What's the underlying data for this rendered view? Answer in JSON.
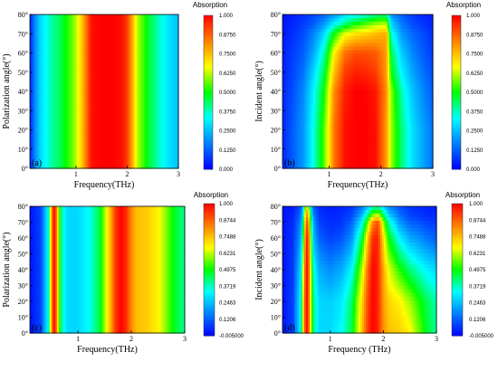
{
  "colors": {
    "colormap": [
      "#0000ff",
      "#0080ff",
      "#00ffff",
      "#00ff00",
      "#ffff00",
      "#ff8000",
      "#ff0000"
    ],
    "axis": "#000000"
  },
  "chart_data": [
    {
      "type": "heatmap",
      "panel_label": "(a)",
      "xlabel": "Frequency(THz)",
      "ylabel": "Polarization angle(°)",
      "xlim": [
        0.1,
        3.0
      ],
      "ylim": [
        0,
        80
      ],
      "x_ticks": [
        {
          "v": 1,
          "t": "1"
        },
        {
          "v": 2,
          "t": "2"
        },
        {
          "v": 3,
          "t": "3"
        }
      ],
      "y_ticks": [
        {
          "v": 0,
          "t": "0°"
        },
        {
          "v": 10,
          "t": "10°"
        },
        {
          "v": 20,
          "t": "20°"
        },
        {
          "v": 30,
          "t": "30°"
        },
        {
          "v": 40,
          "t": "40°"
        },
        {
          "v": 50,
          "t": "50°"
        },
        {
          "v": 60,
          "t": "60°"
        },
        {
          "v": 70,
          "t": "70°"
        },
        {
          "v": 80,
          "t": "80°"
        }
      ],
      "colorbar": {
        "title": "Absorption",
        "range": [
          0,
          1
        ],
        "ticks": [
          "0.000",
          "0.1250",
          "0.2500",
          "0.3750",
          "0.5000",
          "0.6250",
          "0.7500",
          "0.8750",
          "1.000"
        ]
      },
      "x": [
        0.1,
        0.2,
        0.3,
        0.5,
        0.7,
        0.9,
        1.0,
        1.1,
        1.2,
        1.3,
        1.5,
        1.7,
        1.9,
        2.0,
        2.1,
        2.2,
        2.4,
        2.6,
        2.8,
        3.0
      ],
      "y": [
        0,
        80
      ],
      "z": [
        [
          0.05,
          0.18,
          0.28,
          0.38,
          0.45,
          0.55,
          0.62,
          0.72,
          0.85,
          0.98,
          1.0,
          1.0,
          0.98,
          0.92,
          0.78,
          0.62,
          0.48,
          0.38,
          0.3,
          0.25
        ],
        [
          0.05,
          0.18,
          0.28,
          0.38,
          0.45,
          0.55,
          0.62,
          0.72,
          0.85,
          0.98,
          1.0,
          1.0,
          0.98,
          0.92,
          0.78,
          0.62,
          0.48,
          0.38,
          0.3,
          0.25
        ]
      ]
    },
    {
      "type": "heatmap",
      "panel_label": "(b)",
      "xlabel": "Frequency(THz)",
      "ylabel": "Incident angle(°)",
      "xlim": [
        0.1,
        3.0
      ],
      "ylim": [
        0,
        80
      ],
      "x_ticks": [
        {
          "v": 1,
          "t": "1"
        },
        {
          "v": 2,
          "t": "2"
        },
        {
          "v": 3,
          "t": "3"
        }
      ],
      "y_ticks": [
        {
          "v": 0,
          "t": "0°"
        },
        {
          "v": 10,
          "t": "10°"
        },
        {
          "v": 20,
          "t": "20°"
        },
        {
          "v": 30,
          "t": "30°"
        },
        {
          "v": 40,
          "t": "40°"
        },
        {
          "v": 50,
          "t": "50°"
        },
        {
          "v": 60,
          "t": "60°"
        },
        {
          "v": 70,
          "t": "70°"
        },
        {
          "v": 80,
          "t": "80°"
        }
      ],
      "colorbar": {
        "title": "Absorption",
        "range": [
          0,
          1
        ],
        "ticks": [
          "0.000",
          "0.1250",
          "0.2500",
          "0.3750",
          "0.5000",
          "0.6250",
          "0.7500",
          "0.8750",
          "1.000"
        ]
      },
      "x": [
        0.1,
        0.3,
        0.5,
        0.7,
        0.9,
        1.1,
        1.3,
        1.5,
        1.7,
        1.9,
        2.1,
        2.2,
        2.4,
        2.6,
        2.8,
        3.0
      ],
      "y": [
        0,
        20,
        40,
        50,
        60,
        70,
        75,
        80
      ],
      "z": [
        [
          0.05,
          0.12,
          0.2,
          0.35,
          0.55,
          0.85,
          0.98,
          1.0,
          1.0,
          0.98,
          0.8,
          0.6,
          0.42,
          0.3,
          0.22,
          0.15
        ],
        [
          0.05,
          0.12,
          0.2,
          0.35,
          0.55,
          0.85,
          0.98,
          1.0,
          1.0,
          0.98,
          0.8,
          0.6,
          0.42,
          0.3,
          0.22,
          0.15
        ],
        [
          0.05,
          0.1,
          0.18,
          0.32,
          0.5,
          0.82,
          0.96,
          1.0,
          1.0,
          0.97,
          0.82,
          0.58,
          0.38,
          0.26,
          0.18,
          0.12
        ],
        [
          0.04,
          0.09,
          0.15,
          0.28,
          0.45,
          0.75,
          0.92,
          0.96,
          0.95,
          0.92,
          0.8,
          0.5,
          0.32,
          0.22,
          0.15,
          0.1
        ],
        [
          0.04,
          0.08,
          0.12,
          0.22,
          0.38,
          0.68,
          0.85,
          0.9,
          0.9,
          0.88,
          0.8,
          0.45,
          0.27,
          0.18,
          0.12,
          0.08
        ],
        [
          0.03,
          0.06,
          0.1,
          0.17,
          0.28,
          0.5,
          0.65,
          0.7,
          0.72,
          0.75,
          0.78,
          0.35,
          0.2,
          0.14,
          0.1,
          0.06
        ],
        [
          0.03,
          0.05,
          0.08,
          0.12,
          0.2,
          0.32,
          0.42,
          0.5,
          0.55,
          0.6,
          0.62,
          0.28,
          0.16,
          0.1,
          0.07,
          0.05
        ],
        [
          0.02,
          0.04,
          0.06,
          0.09,
          0.13,
          0.2,
          0.28,
          0.32,
          0.35,
          0.4,
          0.42,
          0.2,
          0.12,
          0.08,
          0.05,
          0.04
        ]
      ]
    },
    {
      "type": "heatmap",
      "panel_label": "(c)",
      "xlabel": "Frequency(THz)",
      "ylabel": "Polarization angle(°)",
      "xlim": [
        0.1,
        3.0
      ],
      "ylim": [
        0,
        80
      ],
      "x_ticks": [
        {
          "v": 1,
          "t": "1"
        },
        {
          "v": 2,
          "t": "2"
        },
        {
          "v": 3,
          "t": "3"
        }
      ],
      "y_ticks": [
        {
          "v": 0,
          "t": "0°"
        },
        {
          "v": 10,
          "t": "10°"
        },
        {
          "v": 20,
          "t": "20°"
        },
        {
          "v": 30,
          "t": "30°"
        },
        {
          "v": 40,
          "t": "40°"
        },
        {
          "v": 50,
          "t": "50°"
        },
        {
          "v": 60,
          "t": "60°"
        },
        {
          "v": 70,
          "t": "70°"
        },
        {
          "v": 80,
          "t": "80°"
        }
      ],
      "colorbar": {
        "title": "Absorption",
        "range": [
          -0.005,
          1
        ],
        "ticks": [
          "-0.005000",
          "0.1206",
          "0.2463",
          "0.3719",
          "0.4975",
          "0.6231",
          "0.7488",
          "0.8744",
          "1.000"
        ]
      },
      "x": [
        0.1,
        0.3,
        0.45,
        0.5,
        0.55,
        0.6,
        0.65,
        0.7,
        0.8,
        1.0,
        1.2,
        1.4,
        1.6,
        1.7,
        1.8,
        1.9,
        2.0,
        2.1,
        2.3,
        2.5,
        2.7,
        2.8,
        3.0
      ],
      "y": [
        0,
        80
      ],
      "z": [
        [
          0.02,
          0.08,
          0.35,
          0.78,
          1.0,
          0.85,
          0.55,
          0.38,
          0.28,
          0.28,
          0.33,
          0.45,
          0.75,
          0.92,
          1.0,
          0.95,
          0.82,
          0.75,
          0.73,
          0.68,
          0.55,
          0.48,
          0.4
        ],
        [
          0.02,
          0.08,
          0.35,
          0.78,
          1.0,
          0.85,
          0.55,
          0.38,
          0.28,
          0.28,
          0.33,
          0.45,
          0.75,
          0.92,
          1.0,
          0.95,
          0.82,
          0.75,
          0.73,
          0.68,
          0.55,
          0.48,
          0.4
        ]
      ]
    },
    {
      "type": "heatmap",
      "panel_label": "(d)",
      "xlabel": "Frequency (THz)",
      "ylabel": "Incident angle(°)",
      "xlim": [
        0.1,
        3.0
      ],
      "ylim": [
        0,
        80
      ],
      "x_ticks": [
        {
          "v": 1,
          "t": "1"
        },
        {
          "v": 2,
          "t": "2"
        },
        {
          "v": 3,
          "t": "3"
        }
      ],
      "y_ticks": [
        {
          "v": 0,
          "t": "0°"
        },
        {
          "v": 10,
          "t": "10°"
        },
        {
          "v": 20,
          "t": "20°"
        },
        {
          "v": 30,
          "t": "30°"
        },
        {
          "v": 40,
          "t": "40°"
        },
        {
          "v": 50,
          "t": "50°"
        },
        {
          "v": 60,
          "t": "60°"
        },
        {
          "v": 70,
          "t": "70°"
        },
        {
          "v": 80,
          "t": "80°"
        }
      ],
      "colorbar": {
        "title": "Absorption",
        "range": [
          -0.005,
          1
        ],
        "ticks": [
          "-0.005000",
          "0.1206",
          "0.2463",
          "0.3719",
          "0.4975",
          "0.6231",
          "0.7488",
          "0.8744",
          "1.000"
        ]
      },
      "x": [
        0.1,
        0.3,
        0.45,
        0.5,
        0.55,
        0.6,
        0.65,
        0.7,
        0.8,
        1.0,
        1.2,
        1.4,
        1.6,
        1.7,
        1.8,
        1.9,
        2.0,
        2.1,
        2.3,
        2.5,
        2.7,
        2.8,
        3.0
      ],
      "y": [
        0,
        20,
        40,
        60,
        70,
        75,
        80
      ],
      "z": [
        [
          0.02,
          0.08,
          0.35,
          0.78,
          1.0,
          0.85,
          0.55,
          0.38,
          0.28,
          0.28,
          0.33,
          0.45,
          0.75,
          0.92,
          1.0,
          0.95,
          0.82,
          0.75,
          0.73,
          0.68,
          0.55,
          0.48,
          0.4
        ],
        [
          0.02,
          0.08,
          0.35,
          0.78,
          1.0,
          0.85,
          0.55,
          0.38,
          0.28,
          0.27,
          0.3,
          0.42,
          0.72,
          0.9,
          1.0,
          0.95,
          0.8,
          0.72,
          0.68,
          0.6,
          0.5,
          0.45,
          0.38
        ],
        [
          0.02,
          0.07,
          0.3,
          0.72,
          1.0,
          0.85,
          0.5,
          0.33,
          0.22,
          0.18,
          0.22,
          0.32,
          0.62,
          0.85,
          1.0,
          0.95,
          0.78,
          0.65,
          0.52,
          0.42,
          0.35,
          0.32,
          0.28
        ],
        [
          0.02,
          0.06,
          0.22,
          0.6,
          0.98,
          0.82,
          0.42,
          0.22,
          0.12,
          0.08,
          0.1,
          0.18,
          0.45,
          0.72,
          0.95,
          0.95,
          0.7,
          0.5,
          0.32,
          0.22,
          0.18,
          0.15,
          0.12
        ],
        [
          0.02,
          0.05,
          0.18,
          0.5,
          0.92,
          0.75,
          0.35,
          0.18,
          0.08,
          0.05,
          0.06,
          0.12,
          0.32,
          0.55,
          0.82,
          0.9,
          0.6,
          0.38,
          0.2,
          0.12,
          0.1,
          0.08,
          0.07
        ],
        [
          0.02,
          0.04,
          0.14,
          0.42,
          0.85,
          0.65,
          0.28,
          0.14,
          0.06,
          0.04,
          0.05,
          0.08,
          0.22,
          0.38,
          0.55,
          0.6,
          0.42,
          0.26,
          0.14,
          0.08,
          0.06,
          0.05,
          0.04
        ],
        [
          0.02,
          0.03,
          0.1,
          0.32,
          0.72,
          0.52,
          0.22,
          0.1,
          0.05,
          0.03,
          0.04,
          0.06,
          0.15,
          0.25,
          0.35,
          0.38,
          0.28,
          0.18,
          0.1,
          0.06,
          0.05,
          0.04,
          0.03
        ]
      ]
    }
  ]
}
